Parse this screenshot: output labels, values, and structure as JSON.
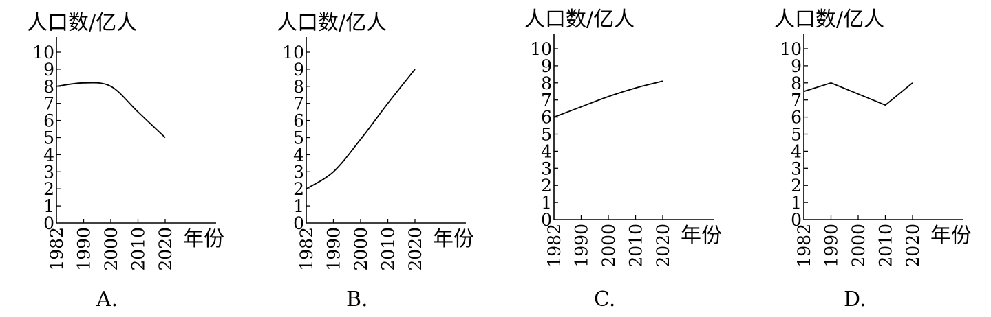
{
  "chart_data": [
    {
      "type": "line",
      "panel_label": "A.",
      "ylabel": "人口数/亿人",
      "xlabel": "年份",
      "x": [
        1982,
        1990,
        2000,
        2010,
        2020
      ],
      "y": [
        8.0,
        8.2,
        8.0,
        6.5,
        5.0
      ],
      "x_ticks": [
        "1982",
        "1990",
        "2000",
        "2010",
        "2020"
      ],
      "y_ticks": [
        "0",
        "1",
        "2",
        "3",
        "4",
        "5",
        "6",
        "7",
        "8",
        "9",
        "10"
      ],
      "ylim": [
        0,
        10
      ],
      "smooth": true,
      "grid": false,
      "line_color": "#000000"
    },
    {
      "type": "line",
      "panel_label": "B.",
      "ylabel": "人口数/亿人",
      "xlabel": "年份",
      "x": [
        1982,
        1990,
        2000,
        2010,
        2020
      ],
      "y": [
        2.0,
        3.0,
        4.9,
        7.0,
        9.0
      ],
      "x_ticks": [
        "1982",
        "1990",
        "2000",
        "2010",
        "2020"
      ],
      "y_ticks": [
        "0",
        "1",
        "2",
        "3",
        "4",
        "5",
        "6",
        "7",
        "8",
        "9",
        "10"
      ],
      "ylim": [
        0,
        10
      ],
      "smooth": true,
      "grid": false,
      "line_color": "#000000"
    },
    {
      "type": "line",
      "panel_label": "C.",
      "ylabel": "人口数/亿人",
      "xlabel": "年份",
      "x": [
        1982,
        1990,
        2000,
        2010,
        2020
      ],
      "y": [
        6.0,
        6.6,
        7.2,
        7.7,
        8.1
      ],
      "x_ticks": [
        "1982",
        "1990",
        "2000",
        "2010",
        "2020"
      ],
      "y_ticks": [
        "0",
        "1",
        "2",
        "3",
        "4",
        "5",
        "6",
        "7",
        "8",
        "9",
        "10"
      ],
      "ylim": [
        0,
        10
      ],
      "smooth": true,
      "grid": false,
      "line_color": "#000000"
    },
    {
      "type": "line",
      "panel_label": "D.",
      "ylabel": "人口数/亿人",
      "xlabel": "年份",
      "x": [
        1982,
        1990,
        2010,
        2020
      ],
      "y": [
        7.5,
        8.0,
        6.7,
        8.0
      ],
      "x_ticks": [
        "1982",
        "1990",
        "2000",
        "2010",
        "2020"
      ],
      "y_ticks": [
        "0",
        "1",
        "2",
        "3",
        "4",
        "5",
        "6",
        "7",
        "8",
        "9",
        "10"
      ],
      "ylim": [
        0,
        10
      ],
      "smooth": false,
      "grid": false,
      "line_color": "#000000"
    }
  ]
}
